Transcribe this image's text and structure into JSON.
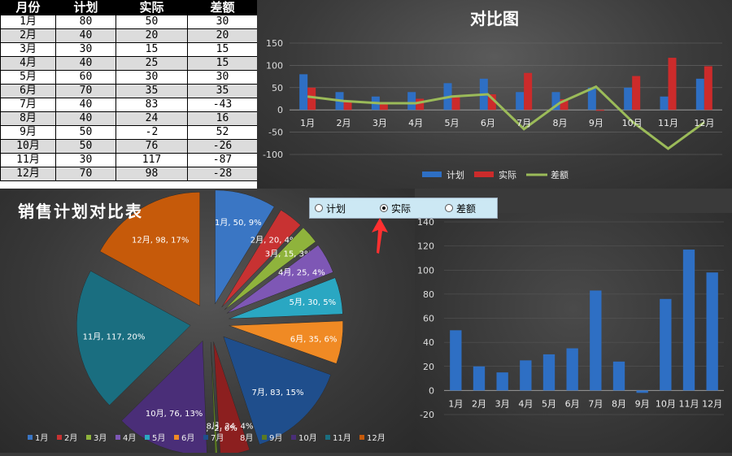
{
  "table": {
    "headers": [
      "月份",
      "计划",
      "实际",
      "差额"
    ],
    "rows": [
      [
        "1月",
        "80",
        "50",
        "30"
      ],
      [
        "2月",
        "40",
        "20",
        "20"
      ],
      [
        "3月",
        "30",
        "15",
        "15"
      ],
      [
        "4月",
        "40",
        "25",
        "15"
      ],
      [
        "5月",
        "60",
        "30",
        "30"
      ],
      [
        "6月",
        "70",
        "35",
        "35"
      ],
      [
        "7月",
        "40",
        "83",
        "-43"
      ],
      [
        "8月",
        "40",
        "24",
        "16"
      ],
      [
        "9月",
        "50",
        "-2",
        "52"
      ],
      [
        "10月",
        "50",
        "76",
        "-26"
      ],
      [
        "11月",
        "30",
        "117",
        "-87"
      ],
      [
        "12月",
        "70",
        "98",
        "-28"
      ]
    ]
  },
  "radio": {
    "options": [
      {
        "label": "计划",
        "checked": false
      },
      {
        "label": "实际",
        "checked": true
      },
      {
        "label": "差额",
        "checked": false
      }
    ]
  },
  "colors": {
    "plan": "#2e6fc4",
    "actual": "#cc2b2b",
    "diff": "#9bbb59",
    "arrow": "#ff3030"
  },
  "chart_data": [
    {
      "type": "bar",
      "title": "对比图",
      "categories": [
        "1月",
        "2月",
        "3月",
        "4月",
        "5月",
        "6月",
        "7月",
        "8月",
        "9月",
        "10月",
        "11月",
        "12月"
      ],
      "series": [
        {
          "name": "计划",
          "type": "bar",
          "values": [
            80,
            40,
            30,
            40,
            60,
            70,
            40,
            40,
            50,
            50,
            30,
            70
          ]
        },
        {
          "name": "实际",
          "type": "bar",
          "values": [
            50,
            20,
            15,
            25,
            30,
            35,
            83,
            24,
            -2,
            76,
            117,
            98
          ]
        },
        {
          "name": "差额",
          "type": "line",
          "values": [
            30,
            20,
            15,
            15,
            30,
            35,
            -43,
            16,
            52,
            -26,
            -87,
            -28
          ]
        }
      ],
      "ylim": [
        -100,
        150
      ],
      "yticks": [
        150,
        100,
        50,
        0,
        -50,
        -100
      ],
      "legend": "bottom"
    },
    {
      "type": "pie",
      "title": "销售计划对比表",
      "categories": [
        "1月",
        "2月",
        "3月",
        "4月",
        "5月",
        "6月",
        "7月",
        "8月",
        "9月",
        "10月",
        "11月",
        "12月"
      ],
      "values": [
        50,
        20,
        15,
        25,
        30,
        35,
        83,
        24,
        -2,
        76,
        117,
        98
      ],
      "labels": [
        "1月, 50, 9%",
        "2月, 20, 4%",
        "3月, 15, 3%",
        "4月, 25, 4%",
        "5月, 30, 5%",
        "6月, 35, 6%",
        "7月, 83, 15%",
        "8月, 24, 4%",
        "9月, -2, 0%",
        "10月, 76, 13%",
        "11月, 117, 20%",
        "12月, 98, 17%"
      ],
      "colors": [
        "#3a76c4",
        "#c83232",
        "#8fb33c",
        "#7e57b5",
        "#2aa7c2",
        "#f08a24",
        "#1f4e8c",
        "#8c1f1f",
        "#5b7a22",
        "#4a2e78",
        "#1a6e80",
        "#c65a0a"
      ],
      "legend": "bottom"
    },
    {
      "type": "bar",
      "series": [
        {
          "name": "实际",
          "values": [
            50,
            20,
            15,
            25,
            30,
            35,
            83,
            24,
            -2,
            76,
            117,
            98
          ]
        }
      ],
      "categories": [
        "1月",
        "2月",
        "3月",
        "4月",
        "5月",
        "6月",
        "7月",
        "8月",
        "9月",
        "10月",
        "11月",
        "12月"
      ],
      "ylim": [
        -20,
        140
      ],
      "yticks": [
        140,
        120,
        100,
        80,
        60,
        40,
        20,
        0,
        -20
      ]
    }
  ]
}
